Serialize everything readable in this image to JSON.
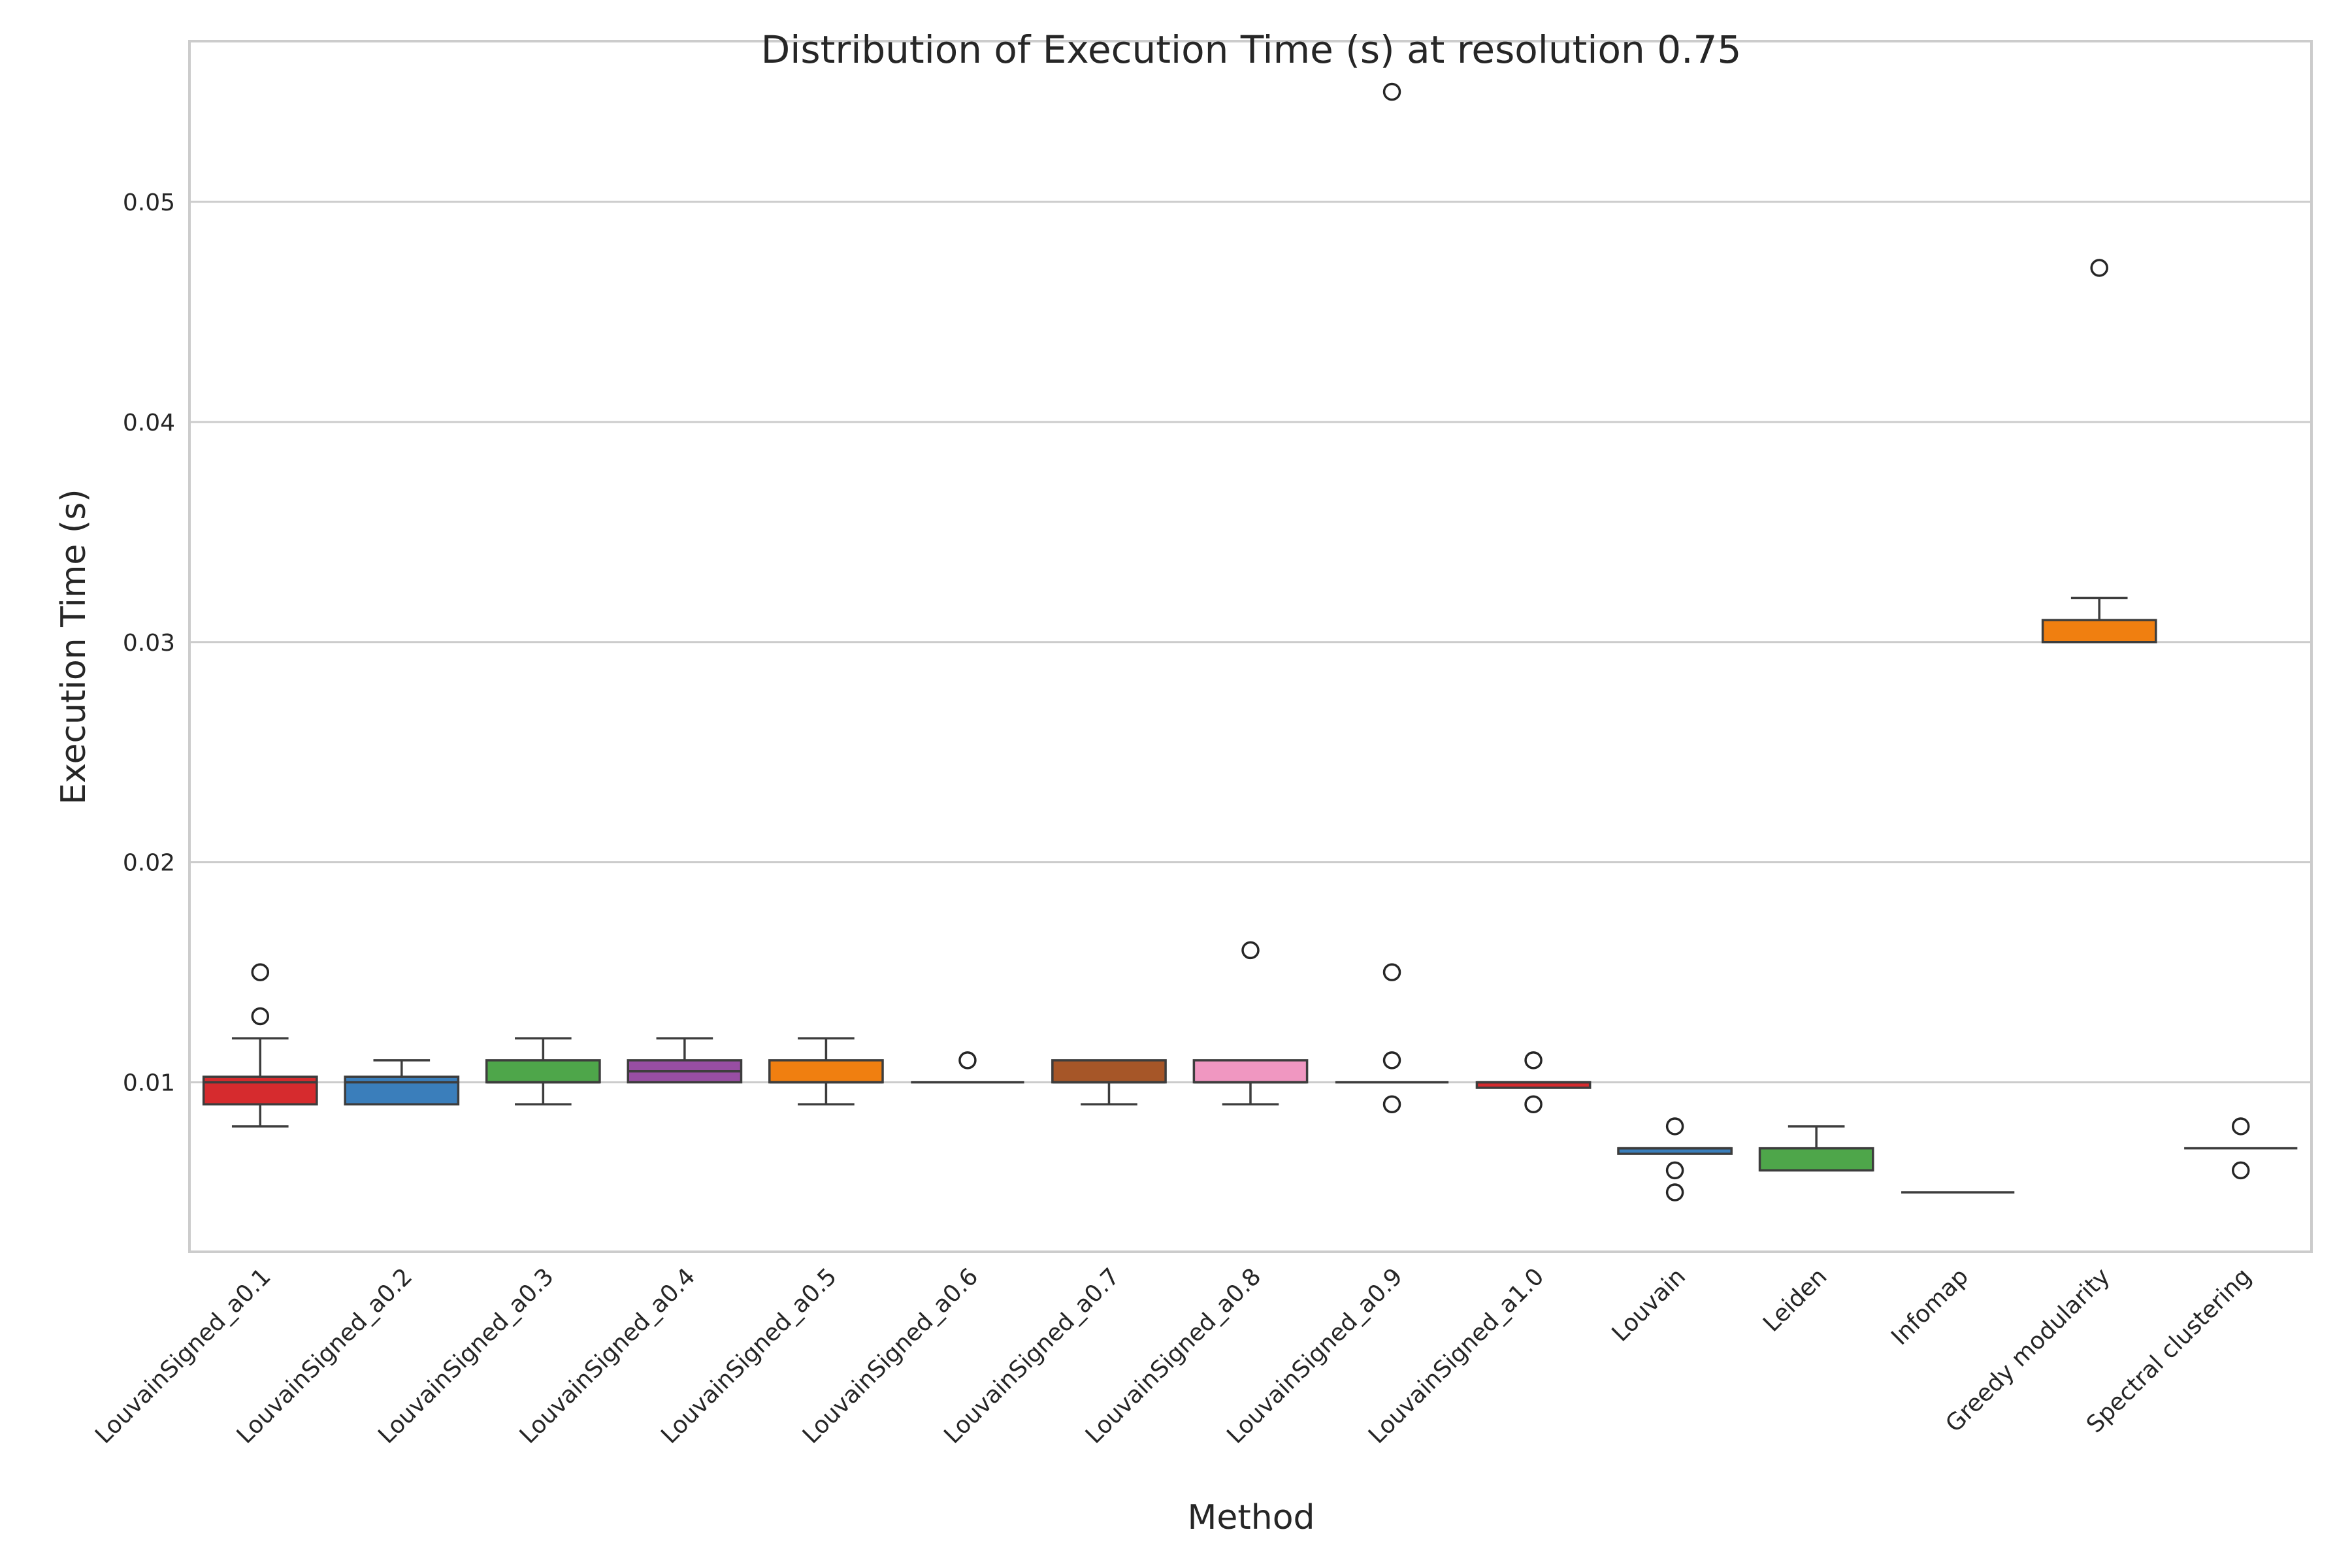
{
  "chart_data": {
    "type": "box",
    "title": "Distribution of Execution Time (s) at resolution 0.75",
    "xlabel": "Method",
    "ylabel": "Execution Time (s)",
    "ylim": [
      0.0023,
      0.0573
    ],
    "yticks": [
      0.01,
      0.02,
      0.03,
      0.04,
      0.05
    ],
    "ytick_labels": [
      "0.01",
      "0.02",
      "0.03",
      "0.04",
      "0.05"
    ],
    "grid": "horizontal",
    "categories": [
      "LouvainSigned_a0.1",
      "LouvainSigned_a0.2",
      "LouvainSigned_a0.3",
      "LouvainSigned_a0.4",
      "LouvainSigned_a0.5",
      "LouvainSigned_a0.6",
      "LouvainSigned_a0.7",
      "LouvainSigned_a0.8",
      "LouvainSigned_a0.9",
      "LouvainSigned_a1.0",
      "Louvain",
      "Leiden",
      "Infomap",
      "Greedy modularity",
      "Spectral clustering"
    ],
    "boxes": [
      {
        "category": "LouvainSigned_a0.1",
        "color": "#d62b2e",
        "whisker_low": 0.008,
        "q1": 0.009,
        "median": 0.01,
        "q3": 0.01025,
        "whisker_high": 0.012,
        "fliers": [
          0.013,
          0.015
        ]
      },
      {
        "category": "LouvainSigned_a0.2",
        "color": "#3a7ebb",
        "whisker_low": 0.009,
        "q1": 0.009,
        "median": 0.01,
        "q3": 0.01025,
        "whisker_high": 0.011,
        "fliers": []
      },
      {
        "category": "LouvainSigned_a0.3",
        "color": "#4ea64a",
        "whisker_low": 0.009,
        "q1": 0.01,
        "median": 0.01,
        "q3": 0.011,
        "whisker_high": 0.012,
        "fliers": []
      },
      {
        "category": "LouvainSigned_a0.4",
        "color": "#984ea3",
        "whisker_low": 0.01,
        "q1": 0.01,
        "median": 0.0105,
        "q3": 0.011,
        "whisker_high": 0.012,
        "fliers": []
      },
      {
        "category": "LouvainSigned_a0.5",
        "color": "#f07f10",
        "whisker_low": 0.009,
        "q1": 0.01,
        "median": 0.01,
        "q3": 0.011,
        "whisker_high": 0.012,
        "fliers": []
      },
      {
        "category": "LouvainSigned_a0.6",
        "color": "#e8d62a",
        "whisker_low": 0.01,
        "q1": 0.01,
        "median": 0.01,
        "q3": 0.01,
        "whisker_high": 0.01,
        "fliers": [
          0.011
        ]
      },
      {
        "category": "LouvainSigned_a0.7",
        "color": "#a65628",
        "whisker_low": 0.009,
        "q1": 0.01,
        "median": 0.01,
        "q3": 0.011,
        "whisker_high": 0.011,
        "fliers": []
      },
      {
        "category": "LouvainSigned_a0.8",
        "color": "#f097c1",
        "whisker_low": 0.009,
        "q1": 0.01,
        "median": 0.01,
        "q3": 0.011,
        "whisker_high": 0.011,
        "fliers": [
          0.016
        ]
      },
      {
        "category": "LouvainSigned_a0.9",
        "color": "#999999",
        "whisker_low": 0.01,
        "q1": 0.01,
        "median": 0.01,
        "q3": 0.01,
        "whisker_high": 0.01,
        "fliers": [
          0.009,
          0.011,
          0.015,
          0.055
        ]
      },
      {
        "category": "LouvainSigned_a1.0",
        "color": "#d62b2e",
        "whisker_low": 0.00975,
        "q1": 0.00975,
        "median": 0.01,
        "q3": 0.01,
        "whisker_high": 0.01,
        "fliers": [
          0.009,
          0.011
        ]
      },
      {
        "category": "Louvain",
        "color": "#3a7ebb",
        "whisker_low": 0.00675,
        "q1": 0.00675,
        "median": 0.007,
        "q3": 0.007,
        "whisker_high": 0.007,
        "fliers": [
          0.005,
          0.006,
          0.008
        ]
      },
      {
        "category": "Leiden",
        "color": "#4ea64a",
        "whisker_low": 0.006,
        "q1": 0.006,
        "median": 0.006,
        "q3": 0.007,
        "whisker_high": 0.008,
        "fliers": []
      },
      {
        "category": "Infomap",
        "color": "#984ea3",
        "whisker_low": 0.005,
        "q1": 0.005,
        "median": 0.005,
        "q3": 0.005,
        "whisker_high": 0.005,
        "fliers": []
      },
      {
        "category": "Greedy modularity",
        "color": "#f07f10",
        "whisker_low": 0.03,
        "q1": 0.03,
        "median": 0.03,
        "q3": 0.031,
        "whisker_high": 0.032,
        "fliers": [
          0.047
        ]
      },
      {
        "category": "Spectral clustering",
        "color": "#e8d62a",
        "whisker_low": 0.007,
        "q1": 0.007,
        "median": 0.007,
        "q3": 0.007,
        "whisker_high": 0.007,
        "fliers": [
          0.006,
          0.008
        ]
      }
    ]
  }
}
